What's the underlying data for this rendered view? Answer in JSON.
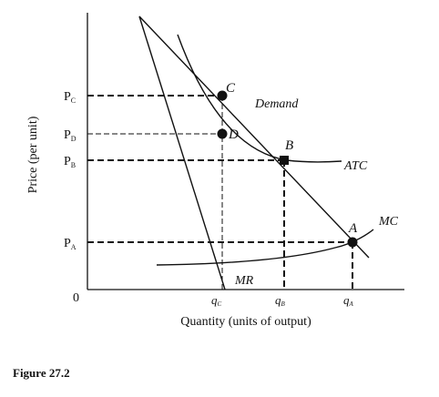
{
  "diagram": {
    "axes": {
      "x_label": "Quantity (units of output)",
      "y_label": "Price (per unit)",
      "origin_label": "0"
    },
    "price_labels": [
      {
        "id": "pc",
        "main": "P",
        "sub": "C"
      },
      {
        "id": "pd",
        "main": "P",
        "sub": "D"
      },
      {
        "id": "pb",
        "main": "P",
        "sub": "B"
      },
      {
        "id": "pa",
        "main": "P",
        "sub": "A"
      }
    ],
    "quantity_labels": [
      {
        "id": "qc",
        "main": "q",
        "sub": "C"
      },
      {
        "id": "qb",
        "main": "q",
        "sub": "B"
      },
      {
        "id": "qa",
        "main": "q",
        "sub": "A"
      }
    ],
    "curves": {
      "demand": "Demand",
      "atc": "ATC",
      "mc": "MC",
      "mr": "MR"
    },
    "points": {
      "a": "A",
      "b": "B",
      "c": "C",
      "d": "D"
    }
  },
  "caption": "Figure 27.2",
  "colors": {
    "line": "#111111",
    "background": "#ffffff"
  }
}
